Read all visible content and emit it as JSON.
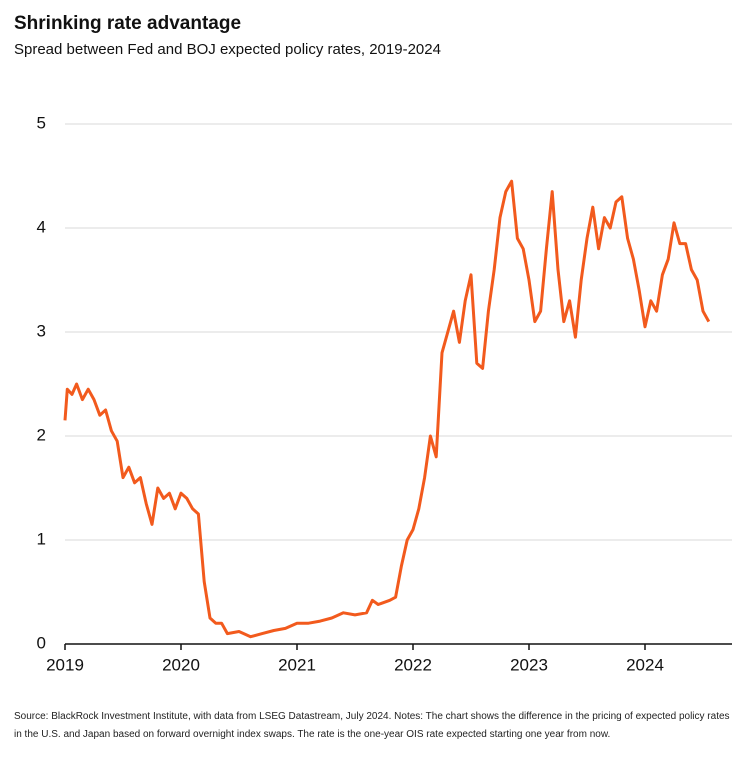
{
  "chart_data": {
    "type": "line",
    "title": "Shrinking rate advantage",
    "subtitle": "Spread between Fed and BOJ expected policy rates, 2019-2024",
    "source": "Source: BlackRock Investment Institute, with data from LSEG Datastream, July 2024. Notes: The chart shows the difference in the pricing of expected policy rates in the U.S. and Japan based on forward overnight index swaps. The rate is the one-year OIS rate expected starting one year from now.",
    "x": [
      2019.0,
      2019.02,
      2019.06,
      2019.1,
      2019.15,
      2019.2,
      2019.25,
      2019.3,
      2019.35,
      2019.4,
      2019.45,
      2019.5,
      2019.55,
      2019.6,
      2019.65,
      2019.7,
      2019.75,
      2019.8,
      2019.85,
      2019.9,
      2019.95,
      2020.0,
      2020.05,
      2020.1,
      2020.15,
      2020.2,
      2020.25,
      2020.3,
      2020.35,
      2020.4,
      2020.5,
      2020.6,
      2020.7,
      2020.8,
      2020.9,
      2021.0,
      2021.1,
      2021.2,
      2021.3,
      2021.4,
      2021.5,
      2021.6,
      2021.65,
      2021.7,
      2021.8,
      2021.85,
      2021.9,
      2021.95,
      2022.0,
      2022.05,
      2022.1,
      2022.15,
      2022.2,
      2022.25,
      2022.3,
      2022.35,
      2022.4,
      2022.45,
      2022.5,
      2022.55,
      2022.6,
      2022.65,
      2022.7,
      2022.75,
      2022.8,
      2022.85,
      2022.9,
      2022.95,
      2023.0,
      2023.05,
      2023.1,
      2023.15,
      2023.2,
      2023.25,
      2023.3,
      2023.35,
      2023.4,
      2023.45,
      2023.5,
      2023.55,
      2023.6,
      2023.65,
      2023.7,
      2023.75,
      2023.8,
      2023.85,
      2023.9,
      2023.95,
      2024.0,
      2024.05,
      2024.1,
      2024.15,
      2024.2,
      2024.25,
      2024.3,
      2024.35,
      2024.4,
      2024.45,
      2024.5,
      2024.55
    ],
    "series": [
      {
        "name": "Spread",
        "color": "#f25a1d",
        "values": [
          2.15,
          2.45,
          2.4,
          2.5,
          2.35,
          2.45,
          2.35,
          2.2,
          2.25,
          2.05,
          1.95,
          1.6,
          1.7,
          1.55,
          1.6,
          1.35,
          1.15,
          1.5,
          1.4,
          1.45,
          1.3,
          1.45,
          1.4,
          1.3,
          1.25,
          0.6,
          0.25,
          0.2,
          0.2,
          0.1,
          0.12,
          0.07,
          0.1,
          0.13,
          0.15,
          0.2,
          0.2,
          0.22,
          0.25,
          0.3,
          0.28,
          0.3,
          0.42,
          0.38,
          0.42,
          0.45,
          0.75,
          1.0,
          1.1,
          1.3,
          1.6,
          2.0,
          1.8,
          2.8,
          3.0,
          3.2,
          2.9,
          3.3,
          3.55,
          2.7,
          2.65,
          3.2,
          3.6,
          4.1,
          4.35,
          4.45,
          3.9,
          3.8,
          3.5,
          3.1,
          3.2,
          3.8,
          4.35,
          3.6,
          3.1,
          3.3,
          2.95,
          3.5,
          3.9,
          4.2,
          3.8,
          4.1,
          4.0,
          4.25,
          4.3,
          3.9,
          3.7,
          3.4,
          3.05,
          3.3,
          3.2,
          3.55,
          3.7,
          4.05,
          3.85,
          3.85,
          3.6,
          3.5,
          3.2,
          3.1
        ]
      }
    ],
    "xlim": [
      2019,
      2024.75
    ],
    "xticks": [
      2019,
      2020,
      2021,
      2022,
      2023,
      2024
    ],
    "ylim": [
      0,
      5
    ],
    "yticks": [
      0,
      1,
      2,
      3,
      4,
      5
    ],
    "grid": true
  }
}
